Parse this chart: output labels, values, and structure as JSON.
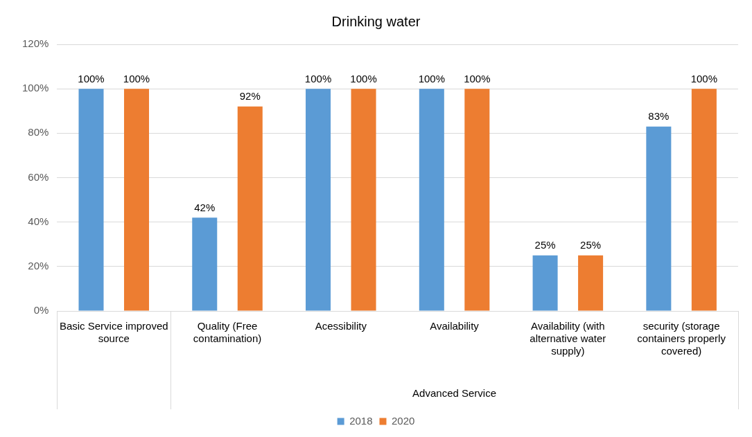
{
  "chart_data": {
    "type": "bar",
    "title": "Drinking water",
    "categories": [
      "Basic Service improved source",
      "Quality (Free contamination)",
      "Acessibility",
      "Availability",
      "Availability (with alternative water supply)",
      "security (storage containers properly covered)"
    ],
    "series": [
      {
        "name": "2018",
        "color": "#5b9bd5",
        "values": [
          100,
          42,
          100,
          100,
          25,
          83
        ],
        "value_labels": [
          "100%",
          "42%",
          "100%",
          "100%",
          "25%",
          "83%"
        ]
      },
      {
        "name": "2020",
        "color": "#ed7d31",
        "values": [
          100,
          92,
          100,
          100,
          25,
          100
        ],
        "value_labels": [
          "100%",
          "92%",
          "100%",
          "100%",
          "25%",
          "100%"
        ]
      }
    ],
    "ylim": [
      0,
      120
    ],
    "yticks": [
      {
        "value": 0,
        "label": "0%"
      },
      {
        "value": 20,
        "label": "20%"
      },
      {
        "value": 40,
        "label": "40%"
      },
      {
        "value": 60,
        "label": "60%"
      },
      {
        "value": 80,
        "label": "80%"
      },
      {
        "value": 100,
        "label": "100%"
      },
      {
        "value": 120,
        "label": "120%"
      }
    ],
    "annotations": [
      "Advanced Service"
    ],
    "grid": "y",
    "legend": "bottom"
  }
}
